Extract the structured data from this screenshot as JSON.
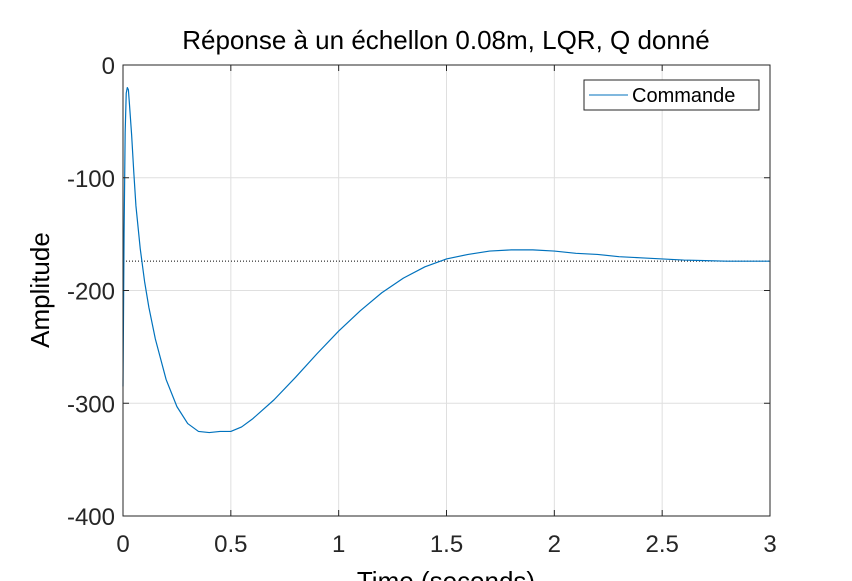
{
  "chart_data": {
    "type": "line",
    "title": "Réponse à un échellon 0.08m, LQR, Q donné",
    "xlabel": "Time (seconds)",
    "ylabel": "Amplitude",
    "xlim": [
      0,
      3
    ],
    "ylim": [
      -400,
      0
    ],
    "xticks": [
      0,
      0.5,
      1,
      1.5,
      2,
      2.5,
      3
    ],
    "yticks": [
      0,
      -100,
      -200,
      -300,
      -400
    ],
    "xtick_labels": [
      "0",
      "0.5",
      "1",
      "1.5",
      "2",
      "2.5",
      "3"
    ],
    "ytick_labels": [
      "0",
      "-100",
      "-200",
      "-300",
      "-400"
    ],
    "grid": true,
    "legend_position": "top-right",
    "series": [
      {
        "name": "Commande",
        "color": "#0072BD",
        "x": [
          0,
          0.005,
          0.01,
          0.015,
          0.02,
          0.025,
          0.03,
          0.04,
          0.05,
          0.06,
          0.08,
          0.1,
          0.12,
          0.15,
          0.2,
          0.25,
          0.3,
          0.35,
          0.4,
          0.45,
          0.5,
          0.55,
          0.6,
          0.7,
          0.8,
          0.9,
          1.0,
          1.1,
          1.2,
          1.3,
          1.4,
          1.5,
          1.6,
          1.7,
          1.8,
          1.9,
          2.0,
          2.1,
          2.2,
          2.3,
          2.4,
          2.5,
          2.6,
          2.7,
          2.8,
          2.9,
          3.0
        ],
        "y": [
          -285,
          -150,
          -60,
          -25,
          -20,
          -22,
          -35,
          -62,
          -95,
          -125,
          -163,
          -192,
          -215,
          -243,
          -279,
          -303,
          -318,
          -325,
          -326,
          -325,
          -325,
          -321,
          -314,
          -297,
          -277,
          -256,
          -236,
          -218,
          -202,
          -189,
          -179,
          -172,
          -168,
          -165,
          -164,
          -164,
          -165,
          -167,
          -168,
          -170,
          -171,
          -172,
          -173,
          -173.5,
          -174,
          -174,
          -174
        ]
      }
    ],
    "reference_line": {
      "y": -174,
      "style": "dotted",
      "color": "#000000"
    }
  }
}
